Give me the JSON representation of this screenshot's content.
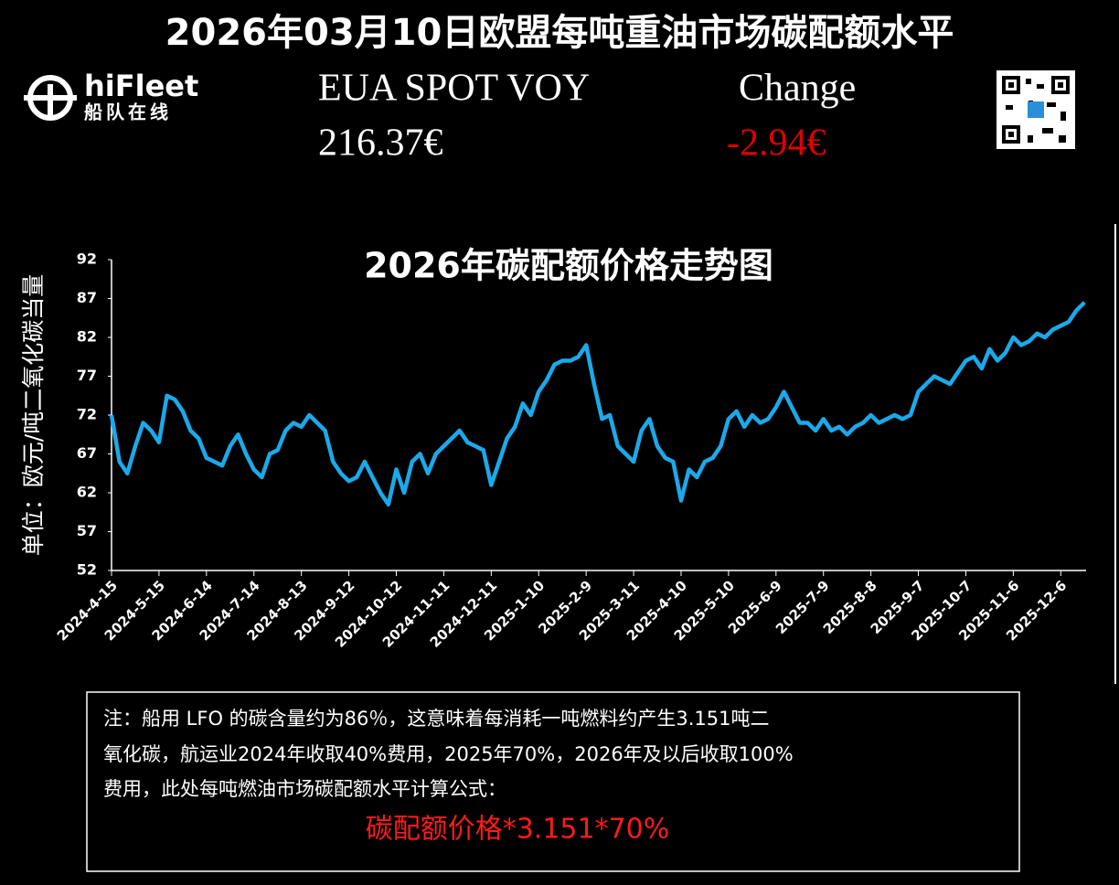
{
  "header": {
    "title": "2026年03月10日欧盟每吨重油市场碳配额水平",
    "eua_label": "EUA SPOT VOY",
    "eua_price": "216.37€",
    "change_label": "Change",
    "change": "-2.94€"
  },
  "logo": {
    "name": "hiFleet",
    "subtitle": "船队在线"
  },
  "chart_data": {
    "type": "line",
    "title": "2026年碳配额价格走势图",
    "y_label": "单位：欧元/吨二氧化碳当量",
    "color": "#1ba9ea",
    "x": [
      "2024-4-15",
      "2024-4-20",
      "2024-4-25",
      "2024-4-30",
      "2024-5-5",
      "2024-5-10",
      "2024-5-15",
      "2024-5-20",
      "2024-5-25",
      "2024-5-30",
      "2024-6-4",
      "2024-6-9",
      "2024-6-14",
      "2024-6-19",
      "2024-6-24",
      "2024-6-29",
      "2024-7-4",
      "2024-7-9",
      "2024-7-14",
      "2024-7-19",
      "2024-7-24",
      "2024-7-29",
      "2024-8-3",
      "2024-8-8",
      "2024-8-13",
      "2024-8-18",
      "2024-8-23",
      "2024-8-28",
      "2024-9-2",
      "2024-9-7",
      "2024-9-12",
      "2024-9-17",
      "2024-9-22",
      "2024-9-27",
      "2024-10-2",
      "2024-10-7",
      "2024-10-12",
      "2024-10-17",
      "2024-10-22",
      "2024-10-27",
      "2024-11-1",
      "2024-11-6",
      "2024-11-11",
      "2024-11-16",
      "2024-11-21",
      "2024-11-26",
      "2024-12-1",
      "2024-12-6",
      "2024-12-11",
      "2024-12-16",
      "2024-12-21",
      "2024-12-26",
      "2024-12-31",
      "2025-1-5",
      "2025-1-10",
      "2025-1-15",
      "2025-1-20",
      "2025-1-25",
      "2025-1-30",
      "2025-2-4",
      "2025-2-9",
      "2025-2-14",
      "2025-2-19",
      "2025-2-24",
      "2025-3-1",
      "2025-3-6",
      "2025-3-11",
      "2025-3-16",
      "2025-3-21",
      "2025-3-26",
      "2025-3-31",
      "2025-4-5",
      "2025-4-10",
      "2025-4-15",
      "2025-4-20",
      "2025-4-25",
      "2025-4-30",
      "2025-5-5",
      "2025-5-10",
      "2025-5-15",
      "2025-5-20",
      "2025-5-25",
      "2025-5-30",
      "2025-6-4",
      "2025-6-9",
      "2025-6-14",
      "2025-6-19",
      "2025-6-24",
      "2025-6-29",
      "2025-7-4",
      "2025-7-9",
      "2025-7-14",
      "2025-7-19",
      "2025-7-24",
      "2025-7-29",
      "2025-8-3",
      "2025-8-8",
      "2025-8-13",
      "2025-8-18",
      "2025-8-23",
      "2025-8-28",
      "2025-9-2",
      "2025-9-7",
      "2025-9-12",
      "2025-9-17",
      "2025-9-22",
      "2025-9-27",
      "2025-10-2",
      "2025-10-7",
      "2025-10-12",
      "2025-10-17",
      "2025-10-22",
      "2025-10-27",
      "2025-11-1",
      "2025-11-6",
      "2025-11-11",
      "2025-11-16",
      "2025-11-21",
      "2025-11-26",
      "2025-12-1",
      "2025-12-6",
      "2025-12-11",
      "2025-12-16",
      "2025-12-21"
    ],
    "values": [
      72,
      66,
      64.5,
      68,
      71,
      70,
      68.5,
      74.5,
      74,
      72.5,
      70,
      69,
      66.5,
      66,
      65.5,
      68,
      69.5,
      67,
      65,
      64,
      67,
      67.5,
      70,
      71,
      70.5,
      72,
      71,
      70,
      66,
      64.5,
      63.5,
      64,
      66,
      64,
      62,
      60.5,
      65,
      62,
      66,
      67,
      64.5,
      67,
      68,
      69,
      70,
      68.5,
      68,
      67.5,
      63,
      66,
      69,
      70.5,
      73.5,
      72,
      75,
      76.5,
      78.5,
      79,
      79,
      79.5,
      81,
      76,
      71.5,
      72,
      68,
      67,
      66,
      70,
      71.5,
      68,
      66.5,
      66,
      61,
      65,
      64,
      66,
      66.5,
      68,
      71.5,
      72.5,
      70.5,
      72,
      71,
      71.5,
      73,
      75,
      73,
      71,
      71,
      70,
      71.5,
      70,
      70.5,
      69.5,
      70.5,
      71,
      72,
      71,
      71.5,
      72,
      71.5,
      72,
      75,
      76,
      77,
      76.5,
      76,
      77.5,
      79,
      79.5,
      78,
      80.5,
      79,
      80,
      82,
      81,
      81.5,
      82.5,
      82,
      83,
      83.5,
      84,
      85.5,
      86.5
    ],
    "xlim": [
      "2024-4-15",
      "2025-12-22"
    ],
    "xticks": [
      "2024-4-15",
      "2024-5-15",
      "2024-6-14",
      "2024-7-14",
      "2024-8-13",
      "2024-9-12",
      "2024-10-12",
      "2024-11-11",
      "2024-12-11",
      "2025-1-10",
      "2025-2-9",
      "2025-3-11",
      "2025-4-10",
      "2025-5-10",
      "2025-6-9",
      "2025-7-9",
      "2025-8-8",
      "2025-9-7",
      "2025-10-7",
      "2025-11-6",
      "2025-12-6"
    ],
    "ylim": [
      52,
      92
    ],
    "yticks": [
      52,
      57,
      62,
      67,
      72,
      77,
      82,
      87,
      92
    ]
  },
  "note": {
    "lines": [
      "注：船用 LFO 的碳含量约为86％，这意味着每消耗一吨燃料约产生3.151吨二",
      "氧化碳，航运业2024年收取40%费用，2025年70%，2026年及以后收取100%",
      "费用，此处每吨燃油市场碳配额水平计算公式："
    ],
    "formula": "碳配额价格*3.151*70%"
  }
}
